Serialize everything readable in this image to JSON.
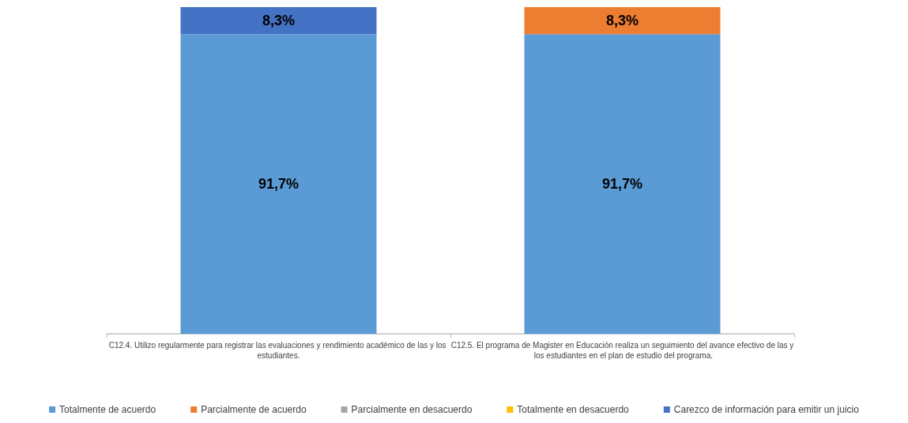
{
  "chart_data": {
    "type": "bar",
    "stacked": true,
    "categories": [
      "C12.4. Utilizo regularmente para registrar las evaluaciones y rendimiento académico de las y los estudiantes.",
      "C12.5. El programa de Magister en Educación realiza un seguimiento del avance efectivo de las y los estudiantes en el plan de estudio del programa."
    ],
    "series": [
      {
        "name": "Totalmente de acuerdo",
        "color": "#5b9bd5",
        "values": [
          91.7,
          91.7
        ],
        "value_labels": [
          "91,7%",
          "91,7%"
        ]
      },
      {
        "name": "Parcialmente de acuerdo",
        "color": "#ed7d31",
        "values": [
          0,
          8.3
        ],
        "value_labels": [
          null,
          "8,3%"
        ]
      },
      {
        "name": "Parcialmente en desacuerdo",
        "color": "#a5a5a5",
        "values": [
          0,
          0
        ],
        "value_labels": [
          null,
          null
        ]
      },
      {
        "name": "Totalmente en desacuerdo",
        "color": "#ffc000",
        "values": [
          0,
          0
        ],
        "value_labels": [
          null,
          null
        ]
      },
      {
        "name": "Carezco de información para emitir un juicio",
        "color": "#4472c4",
        "values": [
          8.3,
          0
        ],
        "value_labels": [
          "8,3%",
          null
        ]
      }
    ],
    "ylim": [
      0,
      100
    ],
    "tick_labels": "x",
    "grid": false,
    "legend": "bottom"
  }
}
